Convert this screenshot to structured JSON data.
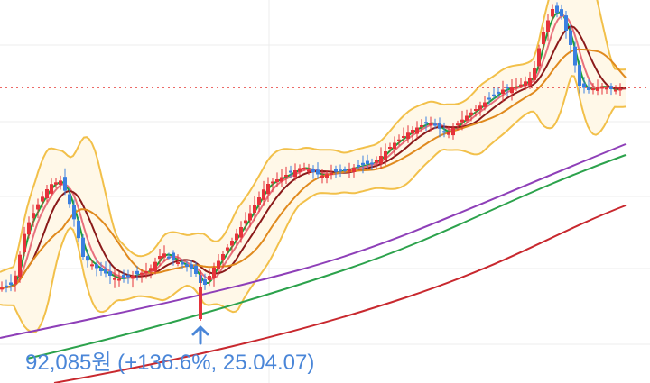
{
  "chart_data": {
    "type": "candlestick",
    "grid": true,
    "colors": {
      "up": "#e5323a",
      "down": "#3b7fe0",
      "ma5": "#1e9e3c",
      "ma10": "#e8707c",
      "ma20": "#8b1a1a",
      "ma60": "#e08a1e",
      "ma120": "#8e3fb8",
      "ma240": "#2ca24c",
      "ma480": "#c8282e",
      "bollinger": "#f2c04a",
      "bollinger_fill": "#fff8e8",
      "last_price_line": "#e53935",
      "annotation": "#4a86d8"
    },
    "annotation": {
      "label": "92,085원 (+136.6%, 25.04.07)",
      "marker_icon": "up-arrow-icon"
    }
  }
}
